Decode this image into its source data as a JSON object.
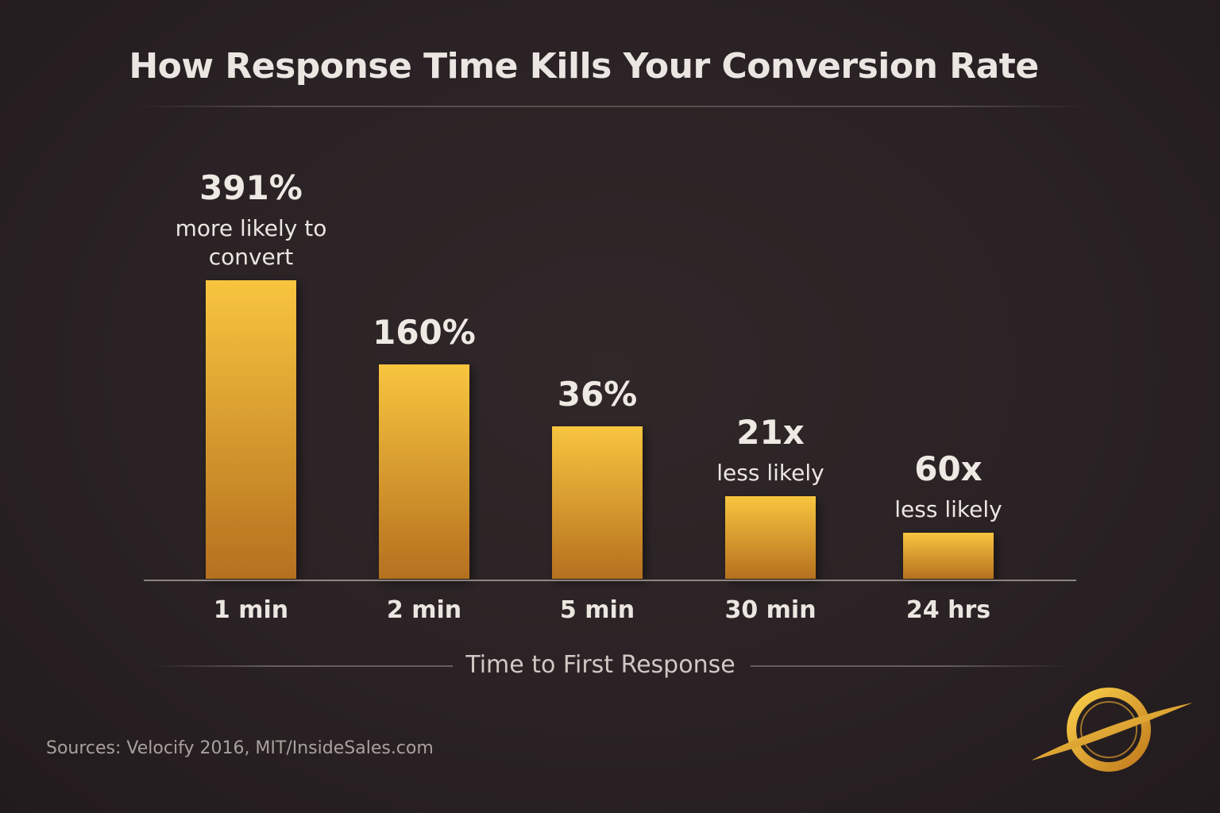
{
  "chart_data": {
    "type": "bar",
    "title": "How Response Time Kills Your Conversion Rate",
    "xlabel": "Time to First Response",
    "ylabel": "",
    "categories": [
      "1 min",
      "2 min",
      "5 min",
      "30 min",
      "24 hrs"
    ],
    "values": [
      376,
      270,
      192,
      104,
      58
    ],
    "labels": [
      {
        "value": "391%",
        "sub": [
          "more likely to",
          "convert"
        ]
      },
      {
        "value": "160%",
        "sub": []
      },
      {
        "value": "36%",
        "sub": []
      },
      {
        "value": "21x",
        "sub": [
          "less likely"
        ]
      },
      {
        "value": "60x",
        "sub": [
          "less likely"
        ]
      }
    ],
    "ylim": [
      0,
      376
    ],
    "grid": false,
    "legend": "none",
    "colors": {
      "bar_top": "#f8c53f",
      "bar_bottom": "#b5701f",
      "background": "#2a2224"
    }
  },
  "source_text": "Sources: Velocify 2016, MIT/InsideSales.com",
  "logo_icon": "orbit-logo-icon"
}
